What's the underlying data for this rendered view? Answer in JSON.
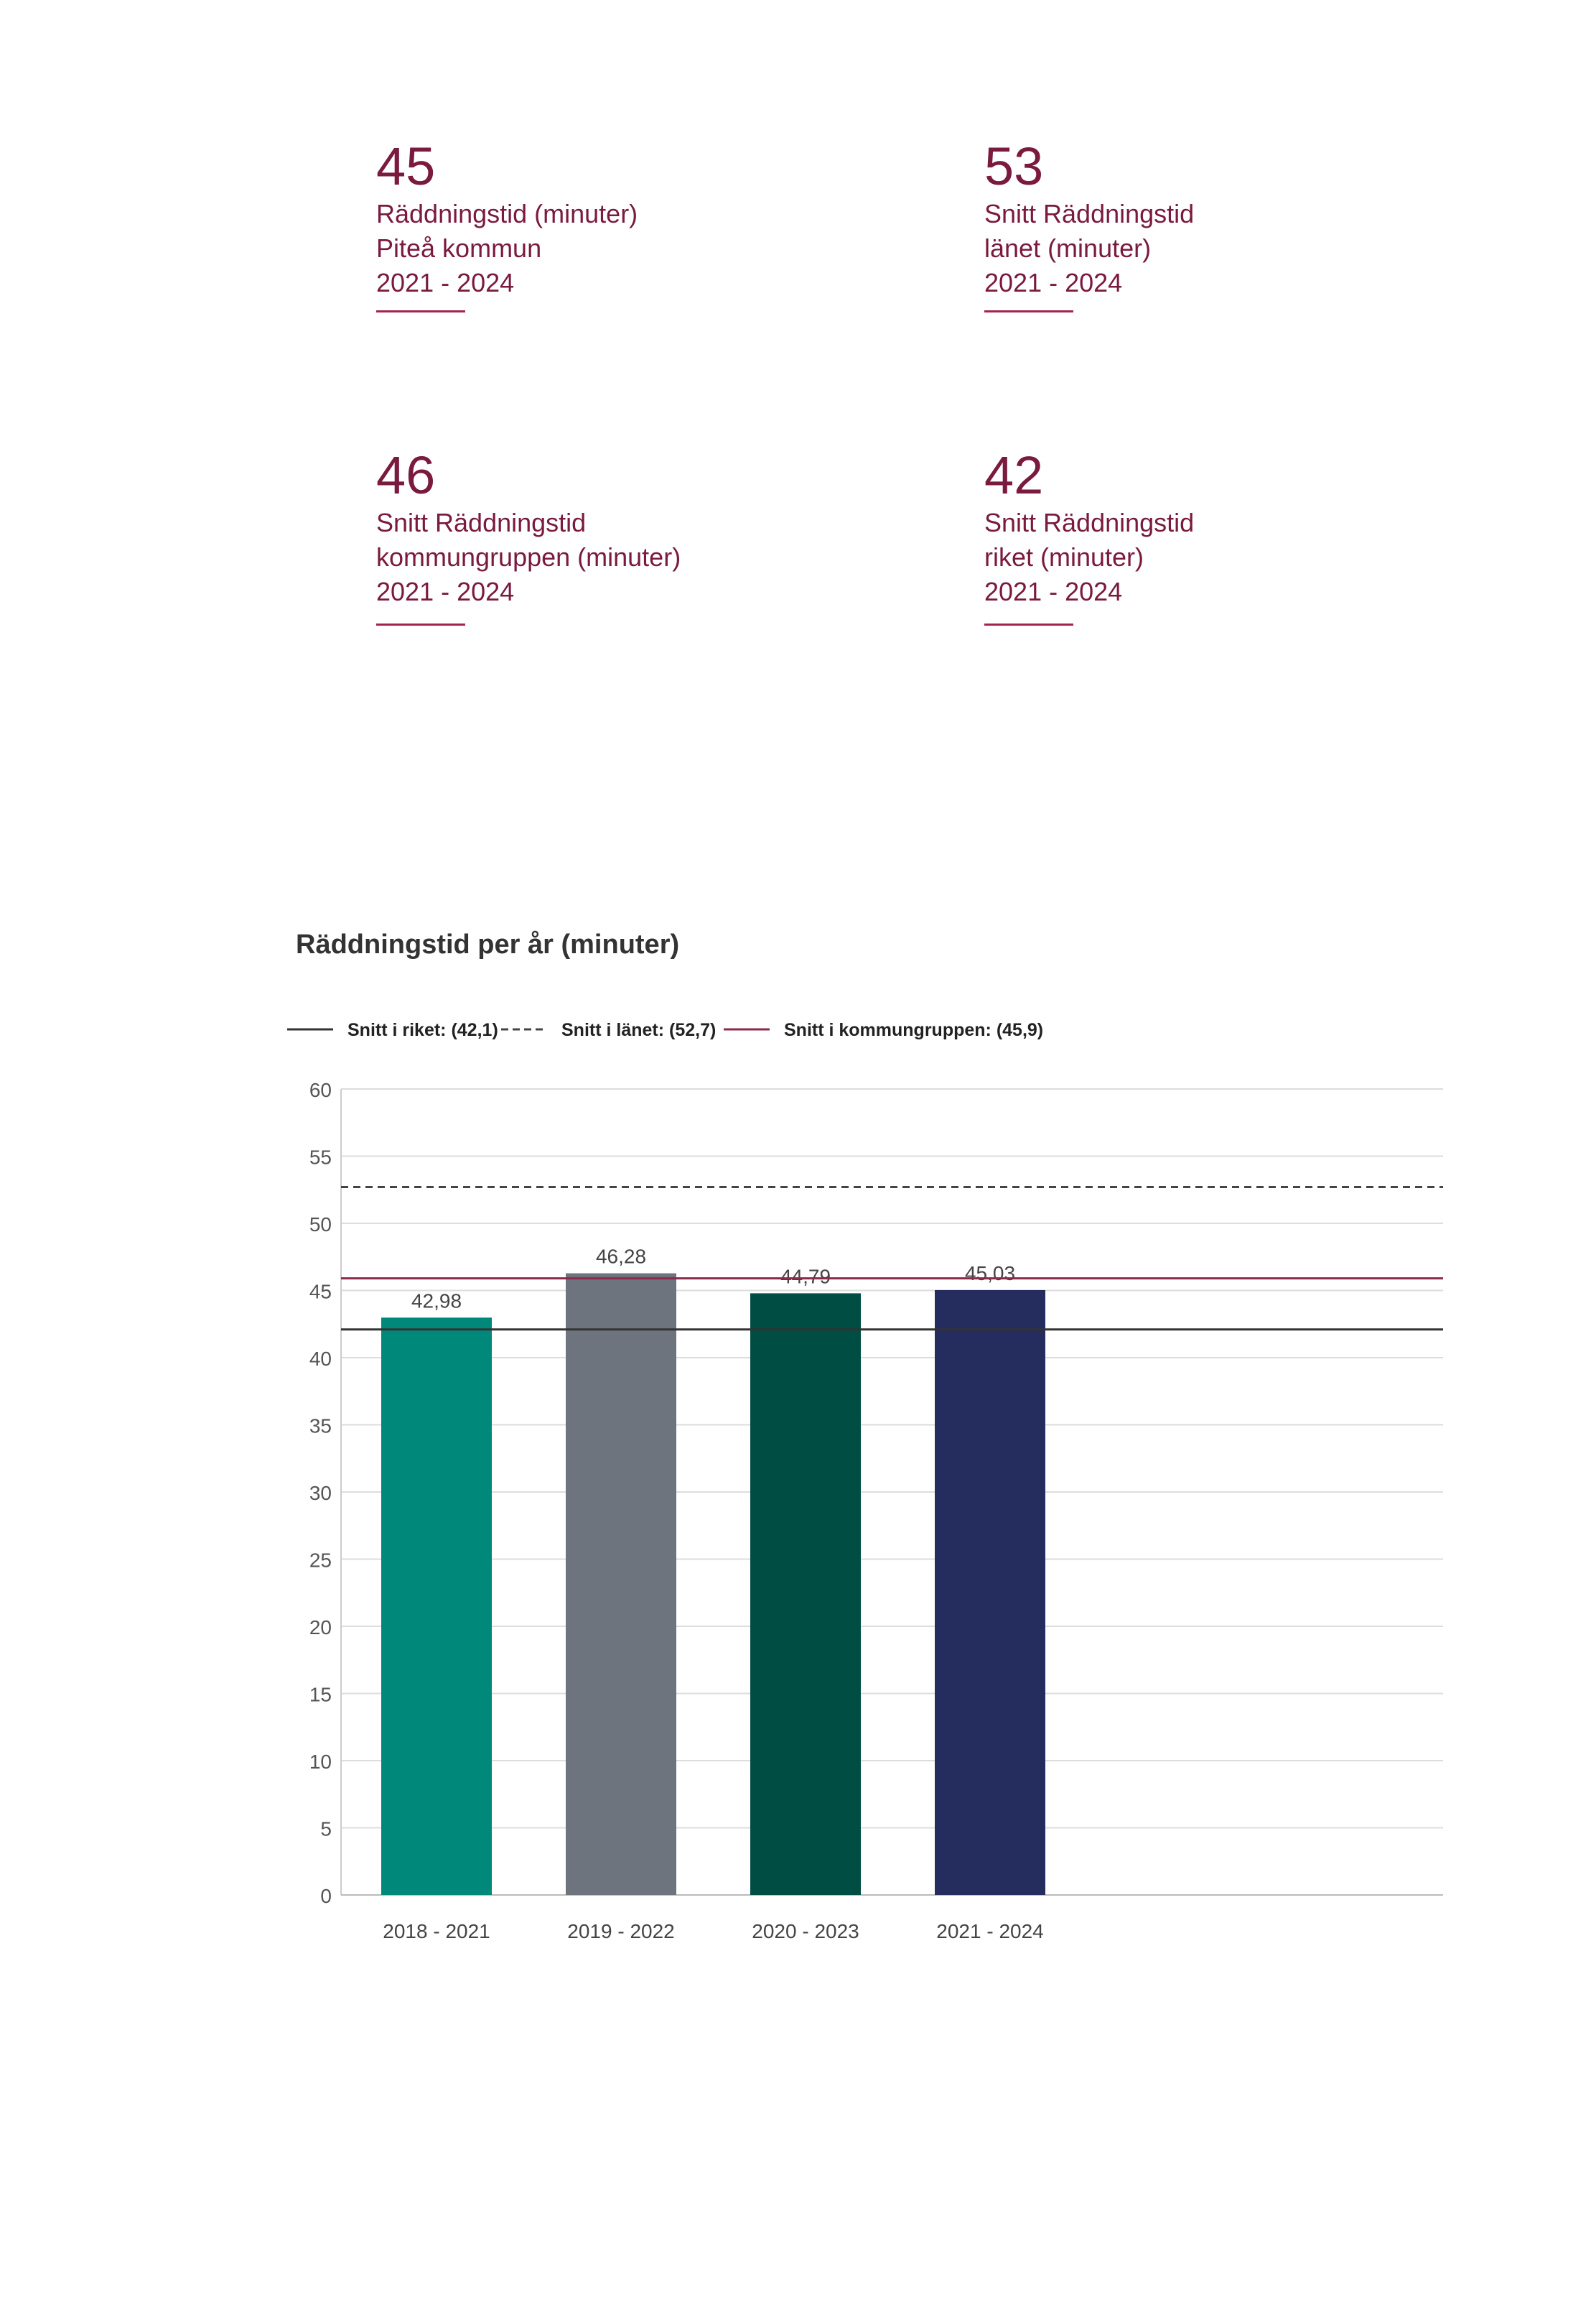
{
  "stats": [
    {
      "value": "45",
      "lines": [
        "Räddningstid (minuter)",
        "Piteå kommun",
        "2021 - 2024"
      ]
    },
    {
      "value": "53",
      "lines": [
        "Snitt Räddningstid",
        "länet (minuter)",
        "2021 - 2024"
      ]
    },
    {
      "value": "46",
      "lines": [
        "Snitt Räddningstid",
        "kommungruppen (minuter)",
        "2021 - 2024"
      ]
    },
    {
      "value": "42",
      "lines": [
        "Snitt Räddningstid",
        "riket (minuter)",
        "2021 - 2024"
      ]
    }
  ],
  "colors": {
    "accent": "#7a1a3e",
    "rule": "#a3244f",
    "bars": [
      "#00897b",
      "#6e747e",
      "#004d44",
      "#252d5e"
    ],
    "riket": "#333333",
    "lanet": "#444444",
    "kommungruppen": "#8b2a4a"
  },
  "chart_data": {
    "type": "bar",
    "title": "Räddningstid per år (minuter)",
    "categories": [
      "2018 - 2021",
      "2019 - 2022",
      "2020 - 2023",
      "2021 - 2024"
    ],
    "values": [
      42.98,
      46.28,
      44.79,
      45.03
    ],
    "value_labels": [
      "42,98",
      "46,28",
      "44,79",
      "45,03"
    ],
    "ylim": [
      0,
      60
    ],
    "yticks": [
      0,
      5,
      10,
      15,
      20,
      25,
      30,
      35,
      40,
      45,
      50,
      55,
      60
    ],
    "grid": true,
    "legend_position": "top-left",
    "reference_lines": [
      {
        "label": "Snitt i riket: (42,1)",
        "value": 42.1,
        "style": "solid",
        "color": "#333333"
      },
      {
        "label": "Snitt i länet: (52,7)",
        "value": 52.7,
        "style": "dashed",
        "color": "#444444"
      },
      {
        "label": "Snitt i kommungruppen: (45,9)",
        "value": 45.9,
        "style": "solid",
        "color": "#8b2a4a"
      }
    ]
  }
}
